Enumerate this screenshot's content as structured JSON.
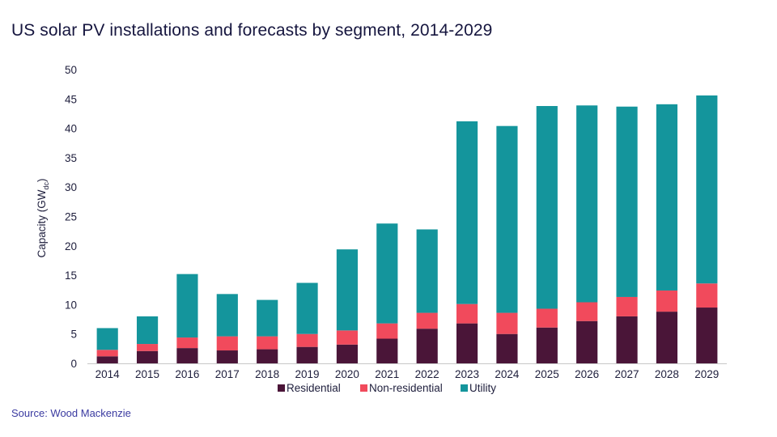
{
  "header": {
    "title": "US solar PV installations and forecasts by segment, 2014-2029"
  },
  "footer": {
    "source": "Source: Wood Mackenzie"
  },
  "colors": {
    "residential": "#4a1538",
    "non_residential": "#f14a5c",
    "utility": "#14959c",
    "axis": "#c8c8c8",
    "text": "#1e1e3c"
  },
  "chart_data": {
    "type": "bar",
    "stacked": true,
    "title": "US solar PV installations and forecasts by segment, 2014-2029",
    "xlabel": "",
    "ylabel": "Capacity (GW",
    "ylabel_subscript": "dc",
    "ylabel_suffix": ")",
    "ylim": [
      0,
      50
    ],
    "yticks": [
      "0",
      "5",
      "10",
      "15",
      "20",
      "25",
      "30",
      "35",
      "40",
      "45",
      "50"
    ],
    "grid": false,
    "legend": "bottom",
    "categories": [
      "2014",
      "2015",
      "2016",
      "2017",
      "2018",
      "2019",
      "2020",
      "2021",
      "2022",
      "2023",
      "2024",
      "2025",
      "2026",
      "2027",
      "2028",
      "2029"
    ],
    "series": [
      {
        "name": "Residential",
        "color": "#4a1538",
        "values": [
          1.2,
          2.1,
          2.6,
          2.2,
          2.4,
          2.8,
          3.2,
          4.2,
          5.9,
          6.8,
          5.0,
          6.1,
          7.2,
          8.0,
          8.8,
          9.5
        ]
      },
      {
        "name": "Non-residential",
        "color": "#f14a5c",
        "values": [
          1.1,
          1.2,
          1.8,
          2.4,
          2.2,
          2.2,
          2.4,
          2.6,
          2.7,
          3.3,
          3.6,
          3.2,
          3.2,
          3.3,
          3.6,
          4.1
        ]
      },
      {
        "name": "Utility",
        "color": "#14959c",
        "values": [
          3.7,
          4.7,
          10.8,
          7.2,
          6.2,
          8.7,
          13.8,
          17.0,
          14.2,
          31.1,
          31.8,
          34.5,
          33.5,
          32.4,
          31.7,
          32.0
        ]
      }
    ]
  }
}
